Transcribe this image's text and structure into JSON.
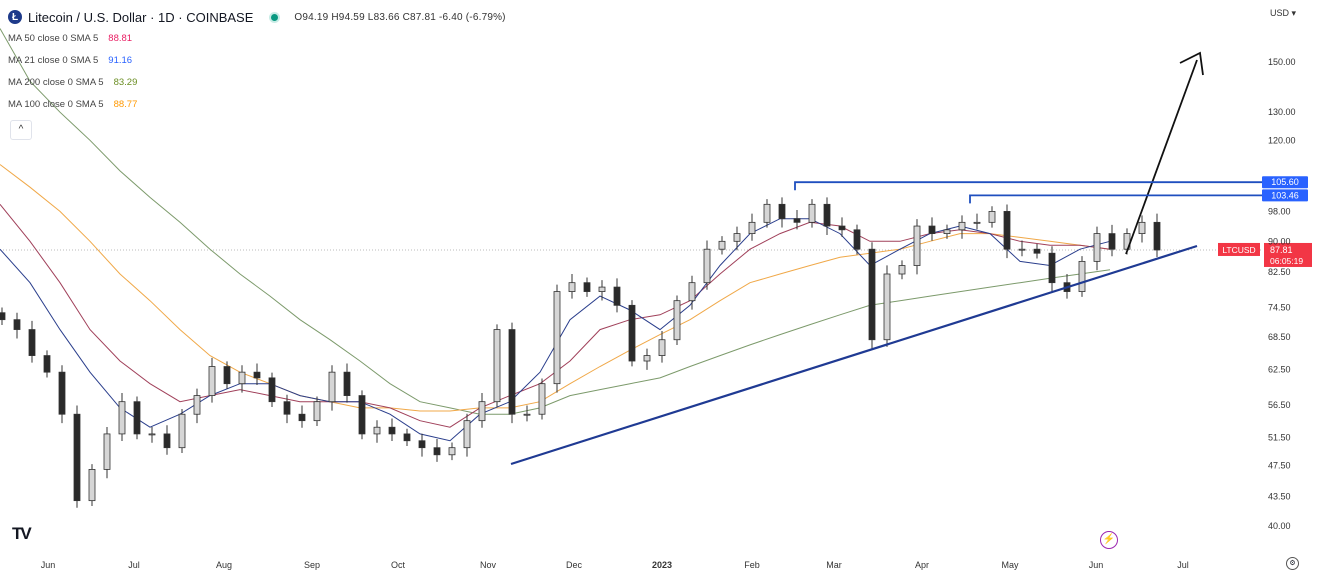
{
  "header": {
    "logo_letter": "Ł",
    "symbol_title": "Litecoin / U.S. Dollar · 1D · COINBASE",
    "ohlc": "O94.19 H94.59 L83.66 C87.81 -6.40 (-6.79%)",
    "collapse_label": "^",
    "currency": "USD ▾",
    "indicators": [
      {
        "label": "MA 50 close 0 SMA 5",
        "value": "88.81",
        "color": "#e91e63"
      },
      {
        "label": "MA 21 close 0 SMA 5",
        "value": "91.16",
        "color": "#2962ff"
      },
      {
        "label": "MA 200 close 0 SMA 5",
        "value": "83.29",
        "color": "#6b8e23"
      },
      {
        "label": "MA 100 close 0 SMA 5",
        "value": "88.77",
        "color": "#ff9800"
      }
    ],
    "tv_logo": "TV",
    "flash_icon": "⚡",
    "settings_icon": "⚙"
  },
  "chart_data": {
    "type": "candlestick",
    "title": "Litecoin / U.S. Dollar · 1D · COINBASE",
    "yscale": "log",
    "ylim": [
      38,
      165
    ],
    "y_ticks": [
      "150.00",
      "130.00",
      "120.00",
      "98.00",
      "90.00",
      "82.50",
      "74.50",
      "68.50",
      "62.50",
      "56.50",
      "51.50",
      "47.50",
      "43.50",
      "40.00"
    ],
    "x_ticks": [
      "Jun",
      "Jul",
      "Aug",
      "Sep",
      "Oct",
      "Nov",
      "Dec",
      "2023",
      "Feb",
      "Mar",
      "Apr",
      "May",
      "Jun",
      "Jul"
    ],
    "candle_interval_days": 5,
    "closes": [
      72,
      70,
      65,
      62,
      55,
      43,
      47,
      52,
      57,
      52,
      52,
      50,
      55,
      58,
      63,
      60,
      62,
      61,
      57,
      55,
      54,
      57,
      62,
      58,
      52,
      53,
      52,
      51,
      50,
      49,
      50,
      54,
      57,
      70,
      55,
      55,
      60,
      78,
      80,
      78,
      79,
      75,
      64,
      65,
      68,
      76,
      80,
      88,
      90,
      92,
      95,
      100,
      96,
      95,
      100,
      94,
      93,
      88,
      68,
      82,
      84,
      94,
      92,
      93,
      95,
      95,
      98,
      88,
      88,
      87,
      80,
      78,
      85,
      92,
      88,
      92,
      95,
      87.81
    ],
    "ma_sample_every_candles": 2,
    "series": [
      {
        "name": "MA 200",
        "color": "#7c9a6b",
        "values": [
          165,
          142,
          130,
          120,
          110,
          102,
          95,
          88,
          82,
          77,
          72,
          68,
          64,
          60,
          57,
          56,
          55,
          55,
          56,
          58,
          59,
          60,
          61,
          63,
          65,
          67,
          69,
          71,
          73,
          75,
          76,
          77,
          78,
          79,
          80,
          81,
          82,
          83
        ]
      },
      {
        "name": "MA 100",
        "color": "#f0a848",
        "values": [
          112,
          105,
          98,
          90,
          82,
          76,
          70,
          65,
          62,
          60,
          58,
          57,
          56,
          56,
          55.5,
          55.5,
          56,
          56,
          57,
          60,
          63,
          66,
          69,
          72,
          76,
          80,
          82,
          84,
          86,
          87,
          88,
          90,
          92,
          92,
          91,
          90,
          89,
          88
        ]
      },
      {
        "name": "MA 50",
        "color": "#a0405a",
        "values": [
          100,
          90,
          80,
          70,
          64,
          60,
          57,
          58,
          59,
          58,
          57,
          57,
          57,
          56,
          54,
          53,
          56,
          58,
          60,
          64,
          70,
          72,
          73,
          76,
          82,
          88,
          92,
          95,
          94,
          90,
          90,
          92,
          93,
          92,
          90,
          89,
          89,
          88
        ]
      },
      {
        "name": "MA 21",
        "color": "#2a3e8c",
        "values": [
          88,
          80,
          70,
          62,
          56,
          53,
          55,
          58,
          60,
          60,
          58,
          57,
          57,
          55,
          52,
          51,
          55,
          57,
          62,
          72,
          77,
          74,
          70,
          75,
          84,
          92,
          96,
          96,
          92,
          84,
          88,
          92,
          94,
          92,
          85,
          84,
          88,
          90
        ]
      }
    ],
    "annotations": {
      "resistance_levels": [
        {
          "price": 105.6,
          "label": "105.60"
        },
        {
          "price": 103.46,
          "label": "103.46"
        }
      ],
      "last_price": {
        "ticker": "LTCUSD",
        "price": 87.81,
        "label": "87.81",
        "countdown": "06:05:19"
      },
      "support_trendline": "rising",
      "breakout_arrow": "up"
    }
  }
}
